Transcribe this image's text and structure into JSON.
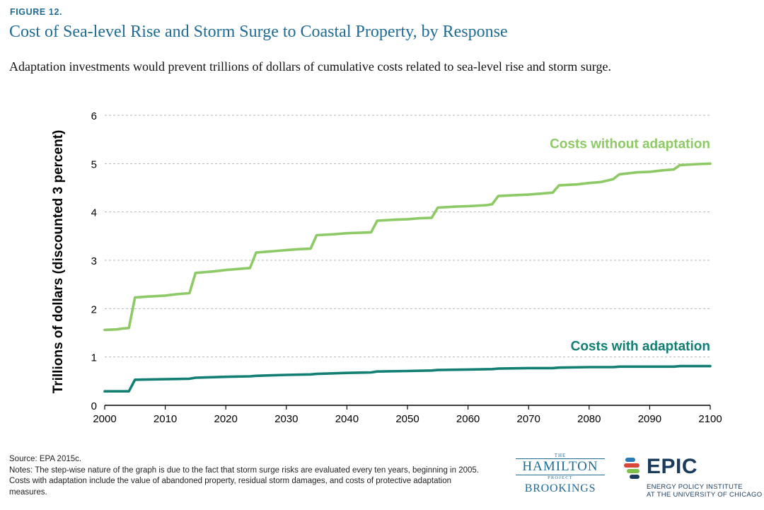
{
  "figure_label": "FIGURE 12.",
  "title": "Cost of Sea-level Rise and Storm Surge to Coastal Property, by Response",
  "subtitle": "Adaptation investments would prevent trillions of dollars of cumulative costs related to sea-level rise and storm surge.",
  "footer": {
    "source": "Source: EPA 2015c.",
    "notes": "Notes: The step-wise nature of the graph is due to the fact that storm surge risks are evaluated every ten years, beginning in 2005. Costs with adaptation include the value of abandoned property, residual storm damages, and costs of protective adaptation measures."
  },
  "logos": {
    "hamilton_the": "THE",
    "hamilton_name": "HAMILTON",
    "hamilton_project": "PROJECT",
    "brookings": "BROOKINGS",
    "epic_word": "EPIC",
    "epic_sub_line1": "ENERGY POLICY INSTITUTE",
    "epic_sub_line2": "AT THE UNIVERSITY OF CHICAGO"
  },
  "colors": {
    "title": "#1f6b94",
    "without_adaptation": "#8dc965",
    "with_adaptation": "#127f72",
    "grid": "#b5b5b5"
  },
  "chart_data": {
    "type": "line",
    "title": "",
    "xlabel": "",
    "ylabel": "Trillions of dollars (discounted 3 percent)",
    "xlim": [
      2000,
      2100
    ],
    "ylim": [
      0,
      6
    ],
    "x_ticks": [
      2000,
      2010,
      2020,
      2030,
      2040,
      2050,
      2060,
      2070,
      2080,
      2090,
      2100
    ],
    "y_ticks": [
      0,
      1,
      2,
      3,
      4,
      5,
      6
    ],
    "grid": "horizontal dashed",
    "series": [
      {
        "name": "Costs without adaptation",
        "color": "#8dc965",
        "points": [
          [
            2000,
            1.56
          ],
          [
            2002,
            1.57
          ],
          [
            2003,
            1.59
          ],
          [
            2004,
            1.6
          ],
          [
            2005,
            2.23
          ],
          [
            2007,
            2.25
          ],
          [
            2010,
            2.27
          ],
          [
            2012,
            2.3
          ],
          [
            2014,
            2.32
          ],
          [
            2015,
            2.74
          ],
          [
            2018,
            2.77
          ],
          [
            2020,
            2.8
          ],
          [
            2023,
            2.83
          ],
          [
            2024,
            2.84
          ],
          [
            2025,
            3.16
          ],
          [
            2028,
            3.19
          ],
          [
            2030,
            3.21
          ],
          [
            2032,
            3.23
          ],
          [
            2034,
            3.24
          ],
          [
            2035,
            3.52
          ],
          [
            2038,
            3.54
          ],
          [
            2040,
            3.56
          ],
          [
            2044,
            3.58
          ],
          [
            2045,
            3.82
          ],
          [
            2048,
            3.84
          ],
          [
            2050,
            3.85
          ],
          [
            2052,
            3.87
          ],
          [
            2054,
            3.88
          ],
          [
            2055,
            4.09
          ],
          [
            2058,
            4.11
          ],
          [
            2060,
            4.12
          ],
          [
            2063,
            4.14
          ],
          [
            2064,
            4.16
          ],
          [
            2065,
            4.33
          ],
          [
            2068,
            4.35
          ],
          [
            2070,
            4.36
          ],
          [
            2074,
            4.4
          ],
          [
            2075,
            4.55
          ],
          [
            2078,
            4.57
          ],
          [
            2080,
            4.6
          ],
          [
            2082,
            4.62
          ],
          [
            2084,
            4.68
          ],
          [
            2085,
            4.78
          ],
          [
            2088,
            4.82
          ],
          [
            2090,
            4.83
          ],
          [
            2092,
            4.86
          ],
          [
            2094,
            4.88
          ],
          [
            2095,
            4.97
          ],
          [
            2098,
            4.99
          ],
          [
            2100,
            5.0
          ]
        ]
      },
      {
        "name": "Costs with adaptation",
        "color": "#127f72",
        "points": [
          [
            2000,
            0.29
          ],
          [
            2004,
            0.29
          ],
          [
            2005,
            0.53
          ],
          [
            2010,
            0.54
          ],
          [
            2014,
            0.55
          ],
          [
            2015,
            0.57
          ],
          [
            2020,
            0.59
          ],
          [
            2024,
            0.6
          ],
          [
            2025,
            0.61
          ],
          [
            2030,
            0.63
          ],
          [
            2034,
            0.64
          ],
          [
            2035,
            0.65
          ],
          [
            2040,
            0.67
          ],
          [
            2044,
            0.68
          ],
          [
            2045,
            0.7
          ],
          [
            2050,
            0.71
          ],
          [
            2054,
            0.72
          ],
          [
            2055,
            0.73
          ],
          [
            2060,
            0.74
          ],
          [
            2064,
            0.75
          ],
          [
            2065,
            0.76
          ],
          [
            2070,
            0.77
          ],
          [
            2074,
            0.77
          ],
          [
            2075,
            0.78
          ],
          [
            2080,
            0.79
          ],
          [
            2084,
            0.79
          ],
          [
            2085,
            0.8
          ],
          [
            2090,
            0.8
          ],
          [
            2094,
            0.8
          ],
          [
            2095,
            0.81
          ],
          [
            2100,
            0.81
          ]
        ]
      }
    ],
    "annotations": [
      {
        "text": "Costs without adaptation",
        "series": 0
      },
      {
        "text": "Costs with adaptation",
        "series": 1
      }
    ]
  }
}
